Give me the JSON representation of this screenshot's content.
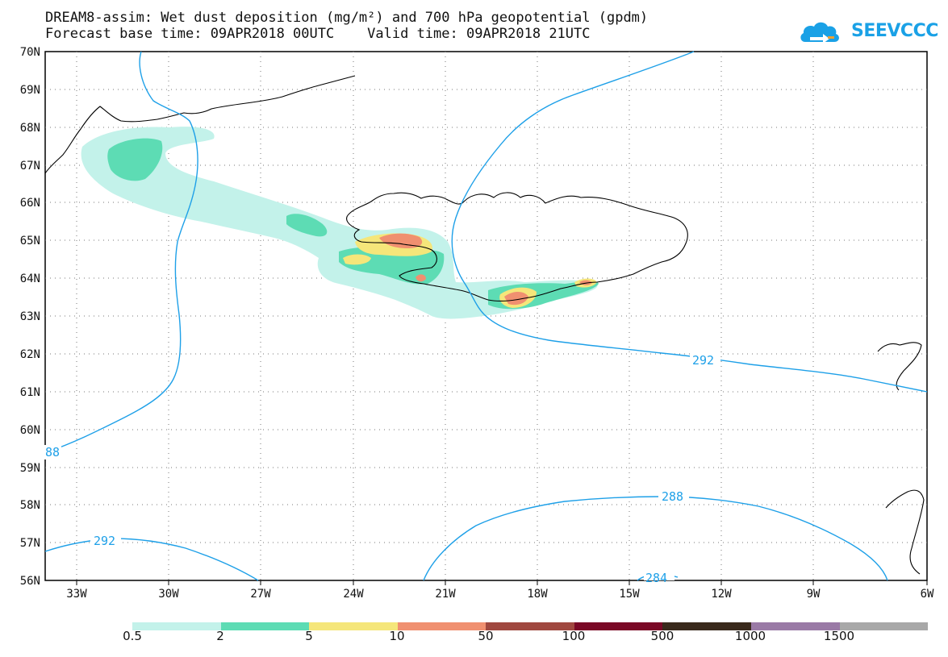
{
  "title_line1": "DREAM8-assim: Wet dust deposition (mg/m²) and 700 hPa geopotential (gpdm)",
  "title_line2": "Forecast base time: 09APR2018 00UTC    Valid time: 09APR2018 21UTC",
  "logo_text": "SEEVCCC",
  "logo_icon": "cloud-arrow-icon",
  "map": {
    "lon_range": [
      -34.5,
      -6
    ],
    "lat_range": [
      56,
      70
    ],
    "lon_ticks": [
      "33W",
      "30W",
      "27W",
      "24W",
      "21W",
      "18W",
      "15W",
      "12W",
      "9W",
      "6W"
    ],
    "lat_ticks": [
      "56N",
      "57N",
      "58N",
      "59N",
      "60N",
      "61N",
      "62N",
      "63N",
      "64N",
      "65N",
      "66N",
      "67N",
      "68N",
      "69N",
      "70N"
    ],
    "grid": "dotted",
    "contour_labels": [
      "292",
      "88",
      "292",
      "288",
      "284"
    ],
    "contour_color": "#1ea0e8"
  },
  "colorbar": {
    "colors": [
      "#c3f2ea",
      "#5ddcb4",
      "#f5e67a",
      "#f09070",
      "#a0483f",
      "#7a0826",
      "#3a2a1c",
      "#9a7aa6",
      "#a8a8a8"
    ],
    "labels": [
      "0.5",
      "2",
      "5",
      "10",
      "50",
      "100",
      "500",
      "1000",
      "1500"
    ]
  }
}
